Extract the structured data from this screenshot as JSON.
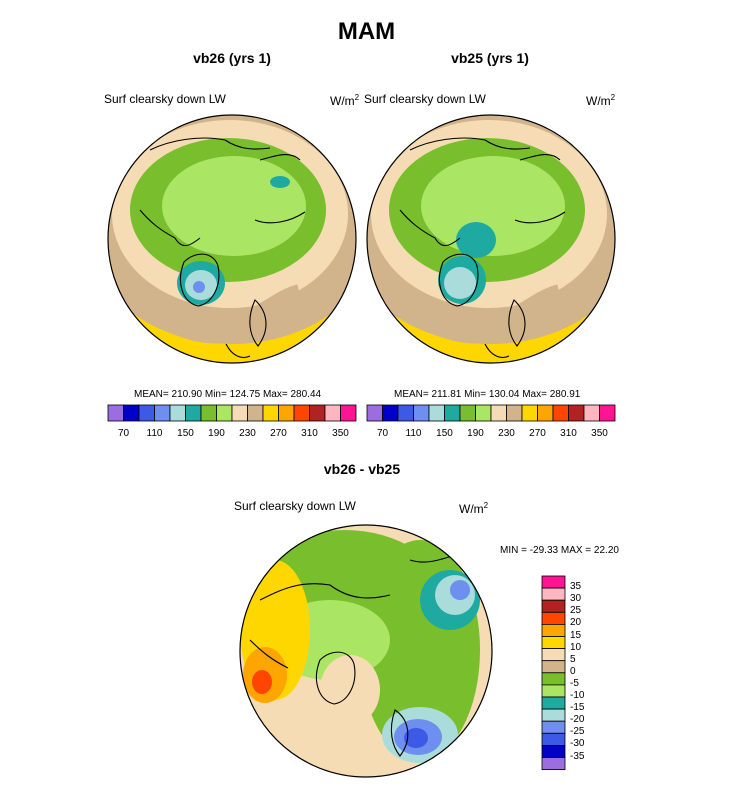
{
  "main_title": "MAM",
  "colors": {
    "lw_scale": [
      "#9b6ddf",
      "#0000c8",
      "#3c5ae6",
      "#6e8ef0",
      "#aadcdc",
      "#1eaaa0",
      "#78be2d",
      "#aae664",
      "#f5dcb4",
      "#d2b48c",
      "#ffd700",
      "#ffa500",
      "#ff4500",
      "#b22222",
      "#ffb6c1",
      "#ff1493"
    ],
    "diff_scale": [
      "#9b6ddf",
      "#0000c8",
      "#3c5ae6",
      "#6e8ef0",
      "#aadcdc",
      "#1eaaa0",
      "#aae664",
      "#78be2d",
      "#d2b48c",
      "#f5dcb4",
      "#ffd700",
      "#ffa500",
      "#ff4500",
      "#b22222",
      "#ffb6c1",
      "#ff1493"
    ],
    "coastline": "#000000"
  },
  "chart_data": [
    {
      "type": "heatmap",
      "projection": "north polar stereographic",
      "title": "vb26 (yrs 1)",
      "variable": "Surf clearsky down LW",
      "units": "W/m",
      "units_sup": "2",
      "stats_text": "MEAN= 210.90  Min= 124.75  Max= 280.44",
      "mean": 210.9,
      "min": 124.75,
      "max": 280.44,
      "colorbar_levels": [
        70,
        90,
        110,
        130,
        150,
        170,
        190,
        210,
        230,
        250,
        270,
        290,
        310,
        330,
        350
      ],
      "colorbar_tick_labels": [
        "70",
        "110",
        "150",
        "190",
        "230",
        "270",
        "310",
        "350"
      ]
    },
    {
      "type": "heatmap",
      "projection": "north polar stereographic",
      "title": "vb25 (yrs 1)",
      "variable": "Surf clearsky down LW",
      "units": "W/m",
      "units_sup": "2",
      "stats_text": "MEAN= 211.81  Min= 130.04  Max= 280.91",
      "mean": 211.81,
      "min": 130.04,
      "max": 280.91,
      "colorbar_levels": [
        70,
        90,
        110,
        130,
        150,
        170,
        190,
        210,
        230,
        250,
        270,
        290,
        310,
        330,
        350
      ],
      "colorbar_tick_labels": [
        "70",
        "110",
        "150",
        "190",
        "230",
        "270",
        "310",
        "350"
      ]
    },
    {
      "type": "heatmap",
      "projection": "north polar stereographic",
      "title": "vb26 - vb25",
      "variable": "Surf clearsky down LW",
      "units": "W/m",
      "units_sup": "2",
      "stats_text": "MIN = -29.33 MAX =  22.20",
      "min": -29.33,
      "max": 22.2,
      "colorbar_levels": [
        -35,
        -30,
        -25,
        -20,
        -15,
        -10,
        -5,
        0,
        5,
        10,
        15,
        20,
        25,
        30,
        35
      ],
      "colorbar_tick_labels": [
        "-35",
        "-30",
        "-25",
        "-20",
        "-15",
        "-10",
        "-5",
        "0",
        "5",
        "10",
        "15",
        "20",
        "25",
        "30",
        "35"
      ]
    }
  ]
}
